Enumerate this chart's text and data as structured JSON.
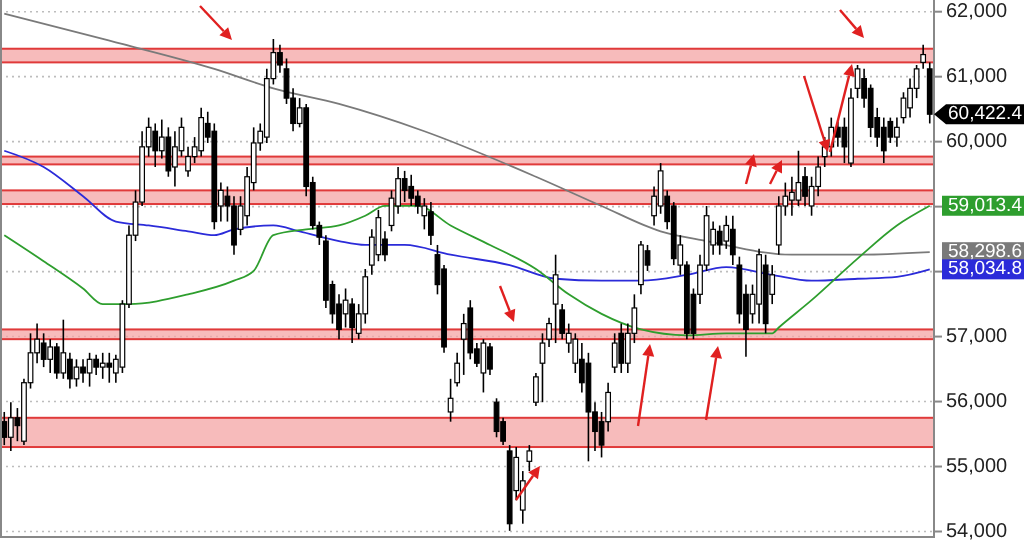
{
  "chart_data": {
    "type": "candlestick",
    "categories": [
      null,
      null,
      null,
      null,
      null,
      null,
      null,
      null,
      null,
      null,
      null,
      null,
      null,
      null,
      null,
      null,
      null,
      null,
      null,
      null,
      null,
      null,
      null,
      null,
      null,
      null,
      null,
      null,
      null,
      null,
      null,
      null,
      null,
      null,
      null,
      null,
      null,
      null,
      null,
      null,
      null,
      null,
      null,
      null,
      null,
      null,
      null,
      null,
      null,
      null,
      null,
      null,
      null,
      null,
      null,
      null,
      null,
      null,
      null,
      null,
      null,
      null,
      null,
      null,
      null,
      null,
      null,
      null,
      null,
      null,
      null,
      null,
      null,
      null,
      null,
      null,
      null,
      null,
      null,
      null,
      null,
      null,
      null,
      null,
      null,
      null,
      null,
      null,
      null,
      null,
      null,
      null,
      null,
      null,
      null,
      null,
      null,
      null,
      null,
      null,
      null,
      null,
      null,
      null,
      null,
      null,
      null,
      null,
      null,
      null,
      null,
      null,
      null,
      null,
      null,
      null,
      null,
      null,
      null,
      null,
      null,
      null,
      null,
      null,
      null,
      null,
      null,
      null,
      null,
      null,
      null,
      null,
      null,
      null,
      null,
      null,
      null,
      null,
      null,
      null,
      null,
      null
    ],
    "ohlc": [
      [
        55690,
        55840,
        55330,
        55450
      ],
      [
        55450,
        55990,
        55240,
        55750
      ],
      [
        55750,
        55900,
        55390,
        55630
      ],
      [
        55390,
        56350,
        55330,
        56290
      ],
      [
        56290,
        57050,
        56200,
        56750
      ],
      [
        56750,
        57200,
        56590,
        56960
      ],
      [
        56900,
        57050,
        56530,
        56650
      ],
      [
        56650,
        56960,
        56440,
        56840
      ],
      [
        56840,
        56900,
        56350,
        56440
      ],
      [
        56440,
        57260,
        56350,
        56750
      ],
      [
        56650,
        56750,
        56200,
        56350
      ],
      [
        56350,
        56650,
        56230,
        56530
      ],
      [
        56530,
        56650,
        56290,
        56440
      ],
      [
        56440,
        56750,
        56230,
        56650
      ],
      [
        56650,
        56720,
        56410,
        56530
      ],
      [
        56530,
        56750,
        56350,
        56590
      ],
      [
        56590,
        56750,
        56290,
        56530
      ],
      [
        56440,
        56720,
        56290,
        56650
      ],
      [
        56530,
        57560,
        56440,
        57500
      ],
      [
        57500,
        58710,
        57440,
        58560
      ],
      [
        58560,
        59250,
        58470,
        59070
      ],
      [
        59070,
        60160,
        59010,
        59920
      ],
      [
        59920,
        60370,
        59770,
        60220
      ],
      [
        60160,
        60280,
        59610,
        59860
      ],
      [
        59860,
        60340,
        59740,
        60070
      ],
      [
        60070,
        60220,
        59460,
        59550
      ],
      [
        59610,
        60160,
        59310,
        59920
      ],
      [
        59860,
        60370,
        59770,
        60220
      ],
      [
        59550,
        59920,
        59460,
        59770
      ],
      [
        59770,
        60070,
        59670,
        59920
      ],
      [
        59860,
        60520,
        59770,
        60370
      ],
      [
        60280,
        60460,
        59980,
        60070
      ],
      [
        60160,
        60280,
        58650,
        58770
      ],
      [
        59010,
        59370,
        58770,
        59250
      ],
      [
        59160,
        59310,
        58770,
        59010
      ],
      [
        59010,
        59160,
        58260,
        58410
      ],
      [
        58650,
        59160,
        58560,
        59010
      ],
      [
        58860,
        59610,
        58710,
        59460
      ],
      [
        59370,
        60220,
        59250,
        59980
      ],
      [
        59980,
        60280,
        59860,
        60160
      ],
      [
        60070,
        61120,
        59980,
        60970
      ],
      [
        60970,
        61580,
        60880,
        61370
      ],
      [
        61370,
        61490,
        61060,
        61180
      ],
      [
        61120,
        61280,
        60580,
        60670
      ],
      [
        60670,
        60820,
        60160,
        60280
      ],
      [
        60280,
        60670,
        60220,
        60520
      ],
      [
        60520,
        60580,
        59160,
        59310
      ],
      [
        59370,
        59460,
        58650,
        58710
      ],
      [
        58710,
        58770,
        58410,
        58530
      ],
      [
        58470,
        58560,
        57440,
        57560
      ],
      [
        57800,
        57860,
        57200,
        57350
      ],
      [
        57500,
        57650,
        56960,
        57110
      ],
      [
        57350,
        57740,
        57140,
        57560
      ],
      [
        57500,
        57590,
        56900,
        57140
      ],
      [
        57050,
        57500,
        56960,
        57350
      ],
      [
        57350,
        58040,
        57200,
        57920
      ],
      [
        58100,
        58650,
        57950,
        58530
      ],
      [
        58260,
        58950,
        58160,
        58830
      ],
      [
        58500,
        58620,
        58160,
        58260
      ],
      [
        58710,
        59250,
        58620,
        59130
      ],
      [
        59010,
        59610,
        58890,
        59430
      ],
      [
        59430,
        59550,
        59070,
        59250
      ],
      [
        59310,
        59490,
        59010,
        59130
      ],
      [
        59160,
        59250,
        58890,
        59010
      ],
      [
        58860,
        59130,
        58650,
        59010
      ],
      [
        58920,
        59070,
        58410,
        58560
      ],
      [
        58260,
        58410,
        57650,
        57800
      ],
      [
        58040,
        58100,
        56750,
        56840
      ],
      [
        55840,
        56350,
        55690,
        56050
      ],
      [
        56290,
        56750,
        56230,
        56590
      ],
      [
        56960,
        57350,
        56410,
        57200
      ],
      [
        57440,
        57560,
        56650,
        56750
      ],
      [
        56810,
        56900,
        56530,
        56590
      ],
      [
        56440,
        56960,
        56140,
        56900
      ],
      [
        56840,
        56900,
        56410,
        56500
      ],
      [
        55990,
        56050,
        55450,
        55540
      ],
      [
        55690,
        55750,
        55330,
        55390
      ],
      [
        55240,
        55330,
        54010,
        54120
      ],
      [
        54630,
        55300,
        54480,
        55140
      ],
      [
        54330,
        54930,
        54120,
        54780
      ],
      [
        55080,
        55330,
        54930,
        55240
      ],
      [
        55990,
        56440,
        55930,
        56380
      ],
      [
        56590,
        57050,
        55990,
        56900
      ],
      [
        56960,
        57290,
        56840,
        57200
      ],
      [
        57500,
        58260,
        56900,
        57950
      ],
      [
        57410,
        57500,
        56960,
        57050
      ],
      [
        56900,
        57200,
        56750,
        57050
      ],
      [
        56590,
        57050,
        56440,
        56960
      ],
      [
        56650,
        56900,
        56140,
        56290
      ],
      [
        56590,
        56750,
        55080,
        55840
      ],
      [
        55840,
        55990,
        55240,
        55540
      ],
      [
        55690,
        55840,
        55140,
        55330
      ],
      [
        55690,
        56290,
        55540,
        56140
      ],
      [
        56530,
        57050,
        56440,
        56900
      ],
      [
        57050,
        57200,
        56440,
        56590
      ],
      [
        56590,
        57200,
        56440,
        57050
      ],
      [
        57050,
        57650,
        56900,
        57440
      ],
      [
        57800,
        58470,
        57650,
        58410
      ],
      [
        58320,
        58410,
        58010,
        58100
      ],
      [
        58860,
        59310,
        58710,
        59160
      ],
      [
        59010,
        59670,
        58890,
        59550
      ],
      [
        59160,
        59250,
        58650,
        58770
      ],
      [
        59010,
        59070,
        58100,
        58200
      ],
      [
        58100,
        58560,
        57950,
        58410
      ],
      [
        58100,
        58160,
        56960,
        57050
      ],
      [
        57650,
        57740,
        56960,
        57050
      ],
      [
        57650,
        58260,
        57500,
        58100
      ],
      [
        58100,
        59010,
        58010,
        58860
      ],
      [
        58410,
        58770,
        58260,
        58650
      ],
      [
        58620,
        58710,
        58260,
        58410
      ],
      [
        58470,
        58860,
        58350,
        58710
      ],
      [
        58650,
        58860,
        58100,
        58260
      ],
      [
        58100,
        58230,
        57200,
        57350
      ],
      [
        57650,
        57800,
        56690,
        57110
      ],
      [
        57350,
        57800,
        57200,
        57650
      ],
      [
        57500,
        58350,
        57200,
        58260
      ],
      [
        58100,
        58260,
        57050,
        57200
      ],
      [
        57650,
        58100,
        57500,
        57950
      ],
      [
        58410,
        59160,
        58260,
        59010
      ],
      [
        59010,
        59370,
        58860,
        59160
      ],
      [
        59100,
        59460,
        58860,
        59220
      ],
      [
        59100,
        59860,
        59010,
        59370
      ],
      [
        59460,
        59610,
        59010,
        59160
      ],
      [
        59010,
        59460,
        58860,
        59310
      ],
      [
        59310,
        59770,
        59160,
        59610
      ],
      [
        59770,
        60070,
        59610,
        59920
      ],
      [
        59920,
        60370,
        59770,
        60220
      ],
      [
        60220,
        60310,
        59920,
        60070
      ],
      [
        60220,
        60370,
        59670,
        59920
      ],
      [
        59670,
        60820,
        59610,
        60670
      ],
      [
        60820,
        61180,
        60670,
        61120
      ],
      [
        60970,
        61120,
        60520,
        60670
      ],
      [
        60820,
        60880,
        60070,
        60220
      ],
      [
        60370,
        60520,
        59920,
        60070
      ],
      [
        60220,
        60370,
        59670,
        59860
      ],
      [
        60310,
        60370,
        59980,
        60070
      ],
      [
        60070,
        60370,
        59920,
        60220
      ],
      [
        60370,
        60760,
        60280,
        60670
      ],
      [
        60520,
        60970,
        60370,
        60820
      ],
      [
        60820,
        61180,
        60670,
        61120
      ],
      [
        61220,
        61490,
        61120,
        61340
      ],
      [
        61120,
        61220,
        60280,
        60422.4
      ]
    ],
    "series": [
      {
        "type": "line",
        "color": "#7a7a7a",
        "values": [
          61970,
          null,
          null,
          null,
          null,
          null,
          null,
          null,
          null,
          null,
          null,
          null,
          null,
          null,
          null,
          61580,
          null,
          null,
          null,
          null,
          null,
          null,
          null,
          null,
          null,
          null,
          null,
          null,
          null,
          null,
          null,
          null,
          61120,
          null,
          null,
          null,
          null,
          null,
          null,
          null,
          null,
          60820,
          null,
          null,
          null,
          null,
          null,
          null,
          null,
          null,
          null,
          60580,
          null,
          null,
          null,
          null,
          null,
          null,
          null,
          null,
          null,
          null,
          null,
          null,
          60160,
          null,
          null,
          null,
          null,
          null,
          null,
          null,
          null,
          null,
          null,
          null,
          null,
          null,
          null,
          null,
          null,
          59460,
          null,
          null,
          null,
          null,
          null,
          null,
          null,
          null,
          null,
          59010,
          null,
          null,
          null,
          null,
          null,
          null,
          null,
          null,
          58620,
          null,
          null,
          null,
          null,
          null,
          null,
          58470,
          null,
          null,
          null,
          null,
          null,
          null,
          null,
          null,
          null,
          null,
          null,
          null,
          58260,
          null,
          null,
          null,
          null,
          null,
          null,
          null,
          null,
          null,
          58260,
          null,
          null,
          null,
          null,
          null,
          null,
          null,
          null,
          null,
          null,
          58298.6
        ]
      },
      {
        "type": "line",
        "color": "#2b2bd9",
        "values": [
          59860,
          null,
          null,
          null,
          null,
          null,
          59610,
          null,
          null,
          null,
          null,
          null,
          59160,
          null,
          null,
          null,
          null,
          58770,
          null,
          null,
          null,
          null,
          58710,
          null,
          null,
          null,
          null,
          null,
          58620,
          null,
          null,
          null,
          58560,
          null,
          null,
          58650,
          null,
          null,
          null,
          null,
          null,
          58710,
          null,
          null,
          null,
          58620,
          null,
          null,
          null,
          null,
          null,
          58470,
          null,
          null,
          null,
          58410,
          null,
          null,
          null,
          null,
          null,
          58410,
          null,
          null,
          null,
          null,
          null,
          null,
          58260,
          null,
          null,
          null,
          null,
          null,
          null,
          null,
          null,
          58100,
          null,
          null,
          null,
          null,
          null,
          null,
          57890,
          null,
          null,
          null,
          null,
          null,
          null,
          57860,
          null,
          null,
          null,
          null,
          null,
          57860,
          null,
          null,
          null,
          null,
          null,
          null,
          57950,
          null,
          null,
          null,
          null,
          null,
          58070,
          null,
          null,
          null,
          null,
          null,
          null,
          57950,
          null,
          null,
          null,
          null,
          null,
          57860,
          null,
          null,
          null,
          null,
          null,
          null,
          57890,
          null,
          null,
          null,
          null,
          null,
          57920,
          null,
          null,
          null,
          null,
          58034.8
        ]
      },
      {
        "type": "line",
        "color": "#2e9e2e",
        "values": [
          58560,
          null,
          null,
          null,
          null,
          null,
          58160,
          null,
          null,
          null,
          null,
          null,
          57740,
          null,
          null,
          57500,
          null,
          null,
          null,
          57500,
          null,
          null,
          null,
          null,
          null,
          null,
          null,
          null,
          57650,
          null,
          null,
          null,
          null,
          null,
          null,
          57860,
          null,
          null,
          58010,
          null,
          null,
          58560,
          null,
          null,
          null,
          null,
          58650,
          null,
          null,
          null,
          null,
          58710,
          null,
          null,
          null,
          58860,
          null,
          null,
          59010,
          null,
          null,
          null,
          null,
          59010,
          null,
          null,
          null,
          null,
          58710,
          null,
          null,
          null,
          null,
          null,
          58410,
          null,
          null,
          null,
          null,
          null,
          null,
          58040,
          null,
          null,
          null,
          null,
          57650,
          null,
          null,
          null,
          null,
          57350,
          null,
          null,
          null,
          null,
          null,
          57110,
          null,
          null,
          null,
          null,
          null,
          null,
          57020,
          null,
          null,
          null,
          null,
          null,
          57050,
          null,
          null,
          null,
          null,
          null,
          null,
          57050,
          57140,
          null,
          null,
          null,
          null,
          57560,
          null,
          null,
          null,
          null,
          null,
          null,
          58200,
          null,
          null,
          null,
          null,
          null,
          58710,
          null,
          null,
          null,
          null,
          59013.4
        ]
      }
    ],
    "ylim": [
      53900,
      62180
    ],
    "yticks": [
      {
        "value": 54000,
        "label": "54,000"
      },
      {
        "value": 55000,
        "label": "55,000"
      },
      {
        "value": 56000,
        "label": "56,000"
      },
      {
        "value": 57000,
        "label": "57,000"
      },
      {
        "value": 58000,
        "label": null
      },
      {
        "value": 59000,
        "label": null
      },
      {
        "value": 60000,
        "label": "60,000"
      },
      {
        "value": 61000,
        "label": "61,000"
      },
      {
        "value": 62000,
        "label": "62,000"
      }
    ],
    "grid": "y",
    "bands": [
      {
        "axis": "y",
        "from": 61220,
        "to": 61430,
        "color": "#f4a4a4"
      },
      {
        "axis": "y",
        "from": 59650,
        "to": 59770,
        "color": "#f4a4a4"
      },
      {
        "axis": "y",
        "from": 59040,
        "to": 59250,
        "color": "#f4a4a4"
      },
      {
        "axis": "y",
        "from": 56960,
        "to": 57110,
        "color": "#f4a4a4"
      },
      {
        "axis": "y",
        "from": 55300,
        "to": 55750,
        "color": "#f4a4a4"
      }
    ],
    "annotations": [
      "60,422.4",
      "59,013.4",
      "58,298.6",
      "58,034.8"
    ]
  }
}
